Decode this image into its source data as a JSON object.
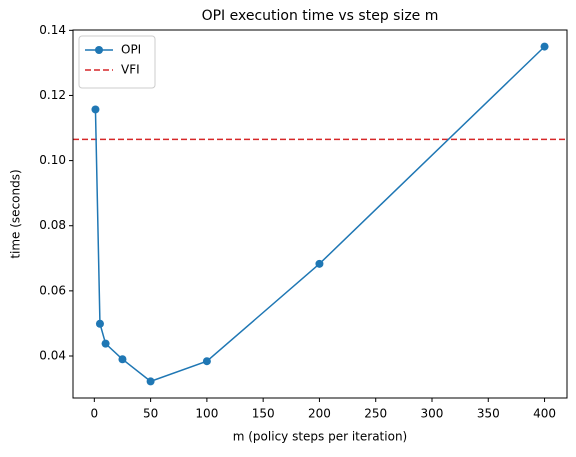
{
  "chart_data": {
    "type": "line",
    "title": "OPI execution time vs step size m",
    "xlabel": "m (policy steps per iteration)",
    "ylabel": "time (seconds)",
    "x": [
      1,
      5,
      10,
      25,
      50,
      100,
      200,
      400
    ],
    "series": [
      {
        "name": "OPI",
        "color": "#1f77b4",
        "marker": "circle",
        "values": [
          0.1157,
          0.0499,
          0.0438,
          0.039,
          0.0322,
          0.0384,
          0.0683,
          0.135
        ]
      }
    ],
    "hlines": [
      {
        "name": "VFI",
        "color": "#d62728",
        "linestyle": "dashed",
        "value": 0.1065
      }
    ],
    "xlim": [
      -18.95,
      419.95
    ],
    "ylim": [
      0.0271,
      0.1401
    ],
    "xticks": [
      0,
      50,
      100,
      150,
      200,
      250,
      300,
      350,
      400
    ],
    "yticks": [
      0.04,
      0.06,
      0.08,
      {
        "value": 0.1,
        "label": "0.10"
      },
      0.12,
      0.14
    ],
    "legend": "upper left",
    "grid": false
  }
}
